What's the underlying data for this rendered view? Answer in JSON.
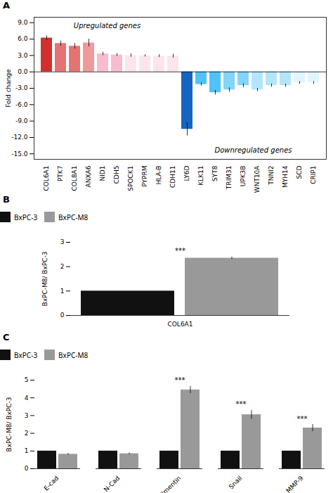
{
  "chart_data": [
    {
      "type": "bar",
      "title": "A",
      "categories": [
        "COL6A1",
        "PTK7",
        "COL8A1",
        "ANXA6",
        "NID1",
        "CDH5",
        "SPOCK1",
        "PYPRM",
        "HLA-B",
        "CDH11",
        "LY6D",
        "KLK11",
        "SYT8",
        "TRIM31",
        "UPK3B",
        "WNT10A",
        "TNNI2",
        "MYH14",
        "SCD",
        "CRIP1"
      ],
      "values": [
        6.2,
        5.2,
        4.7,
        5.3,
        3.3,
        3.1,
        3.0,
        2.95,
        2.9,
        2.9,
        -10.5,
        -2.3,
        -3.8,
        -3.3,
        -2.5,
        -3.3,
        -2.5,
        -2.5,
        -2.0,
        -2.0
      ],
      "errors": [
        0.4,
        0.45,
        0.5,
        0.7,
        0.3,
        0.25,
        0.3,
        0.2,
        0.25,
        0.35,
        1.2,
        0.3,
        0.4,
        0.4,
        0.35,
        0.3,
        0.3,
        0.3,
        0.25,
        0.25
      ],
      "colors": [
        "#d32f2f",
        "#e57373",
        "#e57373",
        "#ef9a9a",
        "#f8bbd0",
        "#f8bbd0",
        "#fce4ec",
        "#fce4ec",
        "#fce4ec",
        "#fce4ec",
        "#1565c0",
        "#4fc3f7",
        "#4fc3f7",
        "#81d4fa",
        "#81d4fa",
        "#b3e5fc",
        "#b3e5fc",
        "#b3e5fc",
        "#e1f5fe",
        "#e1f5fe"
      ],
      "ylabel": "Fold change",
      "ylim": [
        -16,
        10
      ],
      "yticks": [
        {
          "value": 9,
          "label": "9.0"
        },
        {
          "value": 6,
          "label": "6.0"
        },
        {
          "value": 3,
          "label": "3.0"
        },
        {
          "value": 0,
          "label": "0.0"
        },
        {
          "value": -3,
          "label": "-3.0"
        },
        {
          "value": -6,
          "label": "-6.0"
        },
        {
          "value": -9,
          "label": "-9.0"
        },
        {
          "value": -12,
          "label": "-12.0"
        },
        {
          "value": -15,
          "label": "-15.0"
        }
      ],
      "annotations": [
        "Upregulated genes",
        "Downregulated genes"
      ]
    },
    {
      "type": "bar",
      "title": "B",
      "categories": [
        "COL6A1"
      ],
      "series": [
        {
          "name": "BxPC-3",
          "color": "#111111",
          "values": [
            1.0
          ],
          "errors": [
            0.0
          ]
        },
        {
          "name": "BxPC-M8",
          "color": "#999999",
          "values": [
            2.35
          ],
          "errors": [
            0.05
          ]
        }
      ],
      "ylabel": "BxPC-M8/ BxPC-3",
      "ylim": [
        0,
        3
      ],
      "yticks": [
        0,
        1,
        2,
        3
      ],
      "legend": "top",
      "annotations": [
        {
          "category": "COL6A1",
          "text": "***"
        }
      ]
    },
    {
      "type": "bar",
      "title": "C",
      "categories": [
        "E-cad",
        "N-Cad",
        "Vimentin",
        "Snail",
        "MMP-9"
      ],
      "series": [
        {
          "name": "BxPC-3",
          "color": "#111111",
          "values": [
            1.0,
            1.0,
            1.0,
            1.0,
            1.0
          ],
          "errors": [
            0.0,
            0.0,
            0.0,
            0.0,
            0.0
          ]
        },
        {
          "name": "BxPC-M8",
          "color": "#999999",
          "values": [
            0.82,
            0.85,
            4.45,
            3.05,
            2.3
          ],
          "errors": [
            0.05,
            0.05,
            0.2,
            0.25,
            0.2
          ]
        }
      ],
      "ylabel": "BxPC-M8/ BxPC-3",
      "ylim": [
        0,
        5
      ],
      "yticks": [
        0,
        1,
        2,
        3,
        4,
        5
      ],
      "legend": "top",
      "annotations": [
        {
          "category": "Vimentin",
          "text": "***"
        },
        {
          "category": "Snail",
          "text": "***"
        },
        {
          "category": "MMP-9",
          "text": "***"
        }
      ]
    }
  ]
}
